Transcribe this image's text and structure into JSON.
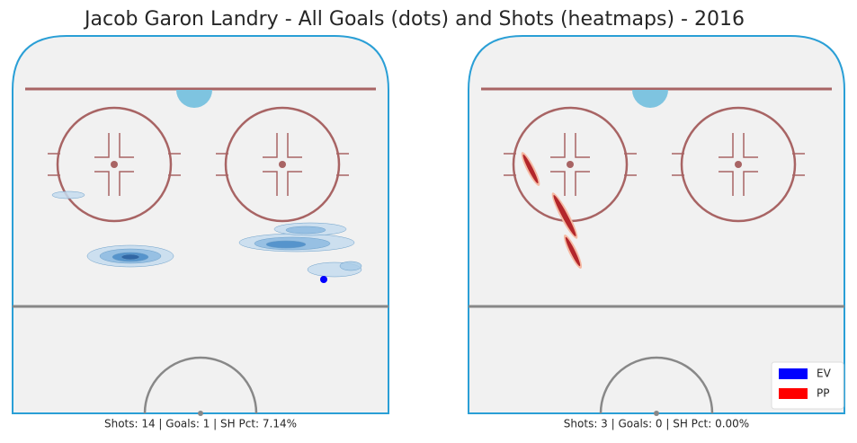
{
  "chart_data": {
    "type": "heatmap",
    "title": "Jacob Garon Landry - All Goals (dots) and Shots (heatmaps) - 2016",
    "panels": [
      {
        "caption": "Shots: 14 | Goals: 1 | SH Pct: 7.14%"
      },
      {
        "caption": "Shots: 3 | Goals: 0 | SH Pct: 0.00%"
      }
    ],
    "legend": {
      "corner": "lower right",
      "entries": [
        {
          "name": "EV",
          "color": "#0000ff"
        },
        {
          "name": "PP",
          "color": "#ff0000"
        }
      ]
    }
  }
}
